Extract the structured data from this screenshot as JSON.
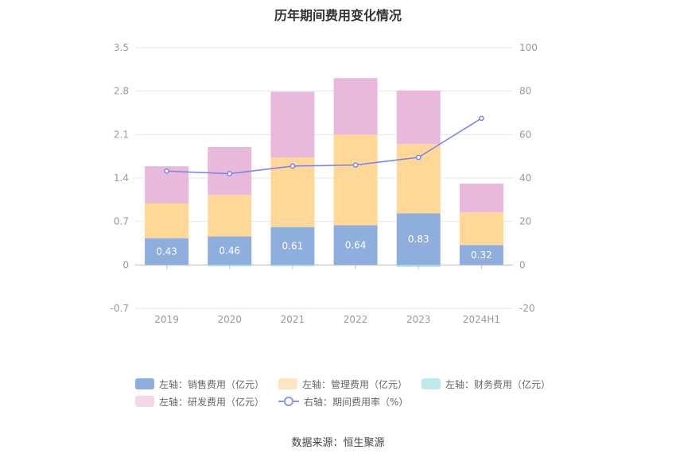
{
  "chart_data": {
    "type": "bar",
    "title": "历年期间费用变化情况",
    "categories": [
      "2019",
      "2020",
      "2021",
      "2022",
      "2023",
      "2024H1"
    ],
    "left_axis": {
      "min": -0.7,
      "max": 3.5,
      "ticks": [
        "-0.7",
        "0",
        "0.7",
        "1.4",
        "2.1",
        "2.8",
        "3.5"
      ]
    },
    "right_axis": {
      "min": -20,
      "max": 100,
      "ticks": [
        "-20",
        "0",
        "20",
        "40",
        "60",
        "80",
        "100"
      ]
    },
    "grid": true,
    "legend_position": "bottom",
    "series": [
      {
        "name": "左轴：销售费用（亿元）",
        "type": "bar",
        "color": "#8eaede",
        "values": [
          0.43,
          0.46,
          0.61,
          0.64,
          0.83,
          0.32
        ],
        "labels": [
          "0.43",
          "0.46",
          "0.61",
          "0.64",
          "0.83",
          "0.32"
        ]
      },
      {
        "name": "左轴：管理费用（亿元）",
        "type": "bar",
        "color": "#ffd897",
        "values": [
          0.56,
          0.67,
          1.12,
          1.46,
          1.12,
          0.53
        ]
      },
      {
        "name": "左轴：财务费用（亿元）",
        "type": "bar",
        "color": "#a8e0e3",
        "values": [
          0.0,
          -0.01,
          -0.01,
          0.0,
          -0.03,
          0.0
        ]
      },
      {
        "name": "左轴：研发费用（亿元）",
        "type": "bar",
        "color": "#e8b9db",
        "values": [
          0.6,
          0.77,
          1.06,
          0.91,
          0.86,
          0.46
        ]
      },
      {
        "name": "右轴：期间费用率（%）",
        "type": "line",
        "color": "#7b85ee",
        "values": [
          43.2,
          42.0,
          45.5,
          46.0,
          49.5,
          67.5
        ]
      }
    ],
    "legend_colors": {
      "sales": "#8eaede",
      "admin": "#ffe5bd",
      "finance": "#bfeaec",
      "rd": "#f3d7ea",
      "rate": "#8d95ee"
    }
  },
  "source": "数据来源：恒生聚源"
}
